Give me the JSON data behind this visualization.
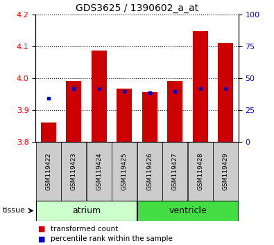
{
  "title": "GDS3625 / 1390602_a_at",
  "samples": [
    "GSM119422",
    "GSM119423",
    "GSM119424",
    "GSM119425",
    "GSM119426",
    "GSM119427",
    "GSM119428",
    "GSM119429"
  ],
  "bar_bottoms": [
    3.8,
    3.8,
    3.8,
    3.8,
    3.8,
    3.8,
    3.8,
    3.8
  ],
  "bar_tops": [
    3.862,
    3.993,
    4.088,
    3.967,
    3.958,
    3.992,
    4.148,
    4.112
  ],
  "blue_y": [
    3.938,
    3.968,
    3.968,
    3.96,
    3.955,
    3.96,
    3.968,
    3.968
  ],
  "ylim_left": [
    3.8,
    4.2
  ],
  "ylim_right": [
    0,
    100
  ],
  "yticks_left": [
    3.8,
    3.9,
    4.0,
    4.1,
    4.2
  ],
  "yticks_right": [
    0,
    25,
    50,
    75,
    100
  ],
  "bar_color": "#cc0000",
  "blue_color": "#0000cc",
  "atrium_color": "#ccffcc",
  "ventricle_color": "#44dd44",
  "label_bg_color": "#cccccc",
  "tissue_label": "tissue",
  "atrium_label": "atrium",
  "ventricle_label": "ventricle",
  "legend_red": "transformed count",
  "legend_blue": "percentile rank within the sample",
  "bar_width": 0.6,
  "figsize": [
    3.95,
    3.54
  ],
  "dpi": 100
}
